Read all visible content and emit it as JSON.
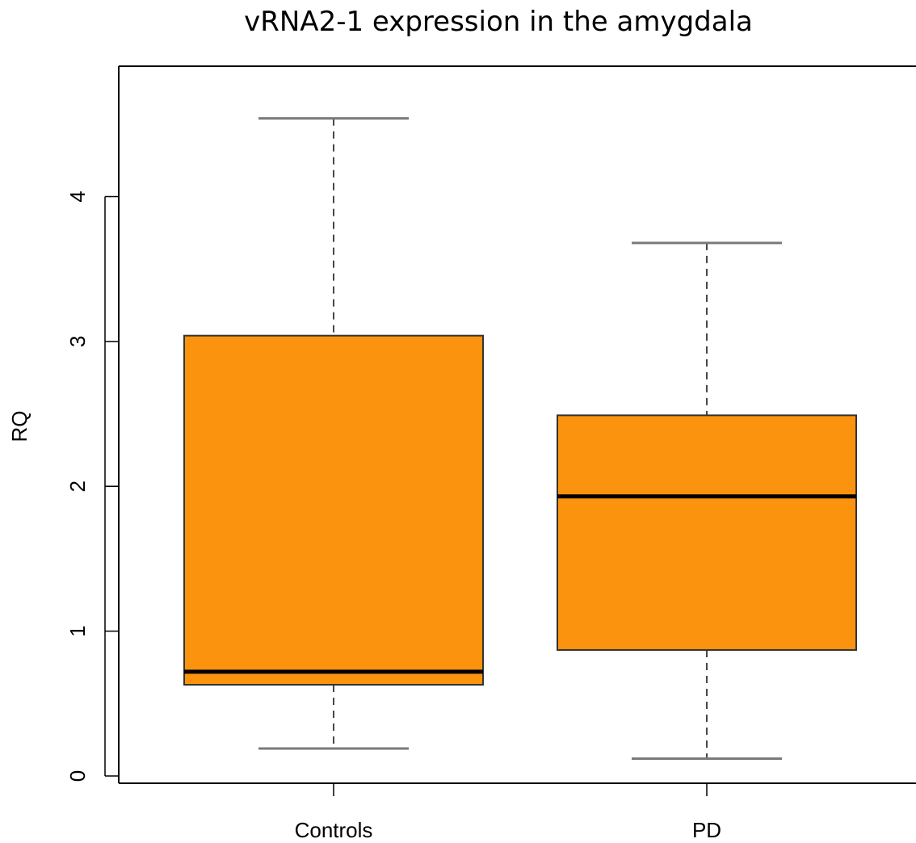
{
  "chart_data": {
    "type": "box",
    "title": "vRNA2-1 expression in the amygdala",
    "xlabel": "",
    "ylabel": "RQ",
    "ylim": [
      -0.05,
      4.9
    ],
    "y_ticks": [
      0,
      1,
      2,
      3,
      4
    ],
    "categories": [
      "Controls",
      "PD"
    ],
    "boxes": [
      {
        "category": "Controls",
        "whisker_low": 0.19,
        "q1": 0.63,
        "median": 0.72,
        "q3": 3.04,
        "whisker_high": 4.54
      },
      {
        "category": "PD",
        "whisker_low": 0.12,
        "q1": 0.87,
        "median": 1.93,
        "q3": 2.49,
        "whisker_high": 3.68
      }
    ],
    "box_fill": "#fb930e",
    "median_color": "#000000",
    "whisker_color": "#7a7a7a",
    "grid": false,
    "legend": "none"
  }
}
